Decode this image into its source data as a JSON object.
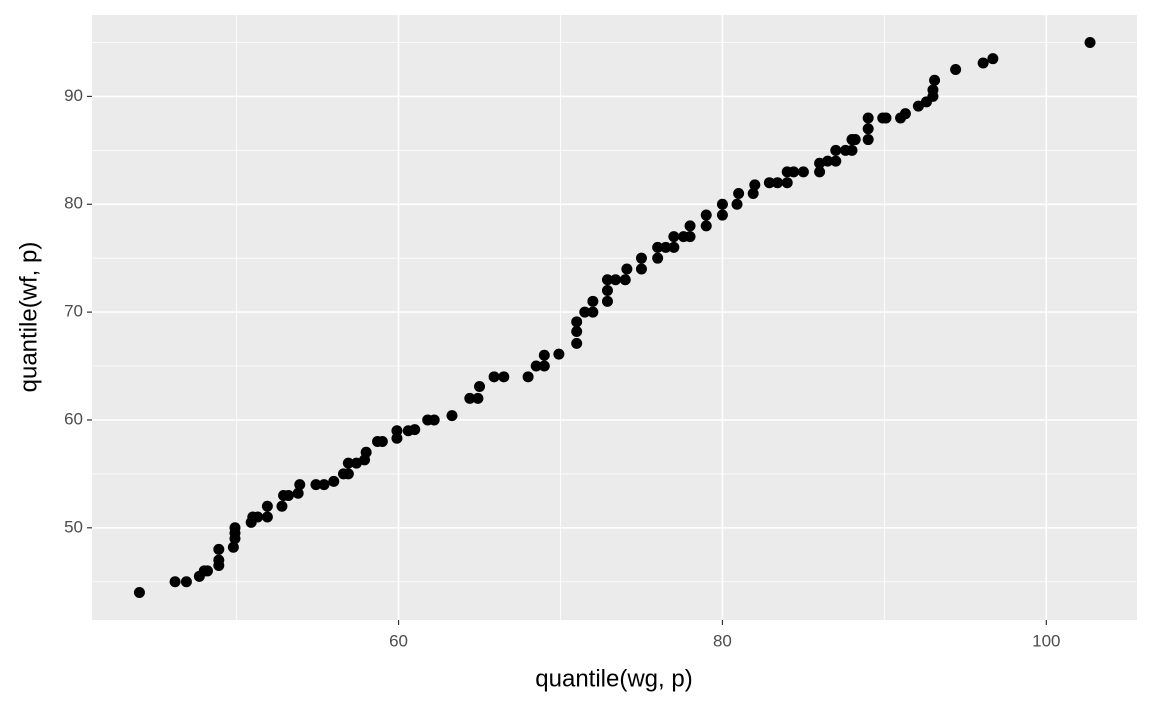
{
  "chart_data": {
    "type": "scatter",
    "x_label": "quantile(wg, p)",
    "y_label": "quantile(wf, p)",
    "x": [
      44,
      46.2,
      46.9,
      47.7,
      48,
      48.2,
      48.9,
      48.9,
      48.9,
      49.8,
      49.9,
      49.9,
      49.9,
      50.9,
      51,
      51.3,
      51.9,
      51.9,
      52.8,
      52.9,
      53.2,
      53.8,
      53.9,
      54.9,
      55.4,
      56,
      56.6,
      56.9,
      56.9,
      57.4,
      57.9,
      58,
      58.7,
      59,
      59.9,
      59.9,
      60.6,
      61,
      61.8,
      62.2,
      63.3,
      64.4,
      64.9,
      65,
      65.9,
      66.5,
      68,
      68.5,
      69,
      69,
      69.9,
      71,
      71,
      71,
      71.5,
      72,
      72,
      72.9,
      72.9,
      72.9,
      73.4,
      74,
      74.1,
      75,
      75,
      76,
      76,
      76.5,
      77,
      77,
      77.6,
      78,
      78,
      79,
      79,
      80,
      80,
      80.9,
      81,
      81.9,
      82,
      82.9,
      83.4,
      84,
      84,
      84.4,
      85,
      86,
      86,
      86.5,
      87,
      87,
      87.6,
      88,
      88,
      88.2,
      89,
      89,
      89,
      89.9,
      90.1,
      91,
      91.3,
      92.1,
      92.6,
      93,
      93,
      93.1,
      94.4,
      96.1,
      96.7,
      102.7
    ],
    "values": [
      44,
      45,
      45,
      45.5,
      46,
      46,
      46.5,
      47,
      48,
      48.2,
      49,
      49.5,
      50,
      50.5,
      51,
      51,
      51,
      52,
      52,
      53,
      53,
      53.2,
      54,
      54,
      54,
      54.3,
      55,
      55,
      56,
      56,
      56.3,
      57,
      58,
      58,
      58.3,
      59,
      59,
      59.1,
      60,
      60,
      60.4,
      62,
      62,
      63.1,
      64,
      64,
      64,
      65,
      65,
      66,
      66.1,
      67.1,
      68.2,
      69.1,
      70,
      70,
      71,
      71,
      72,
      73,
      73,
      73,
      74,
      74,
      75,
      75,
      76,
      76,
      76,
      77,
      77,
      77,
      78,
      78,
      79,
      79,
      80,
      80,
      81,
      81,
      81.8,
      82,
      82,
      82,
      83,
      83,
      83,
      83,
      83.8,
      84,
      84,
      85,
      85,
      85,
      86,
      86,
      86,
      87,
      88,
      88,
      88,
      88,
      88.4,
      89.1,
      89.5,
      90,
      90.6,
      91.5,
      92.5,
      93.1,
      93.5,
      95
    ],
    "color": "#000000",
    "xlim": [
      41.07,
      105.6
    ],
    "xticks": [
      60,
      80,
      100
    ],
    "x_minor_breaks": [
      50,
      70,
      90
    ],
    "ylim": [
      41.45,
      97.55
    ],
    "yticks": [
      50,
      60,
      70,
      80,
      90
    ],
    "y_minor_breaks": [
      45,
      55,
      65,
      75,
      85,
      95
    ],
    "grid": true,
    "background": "#ebebeb"
  }
}
